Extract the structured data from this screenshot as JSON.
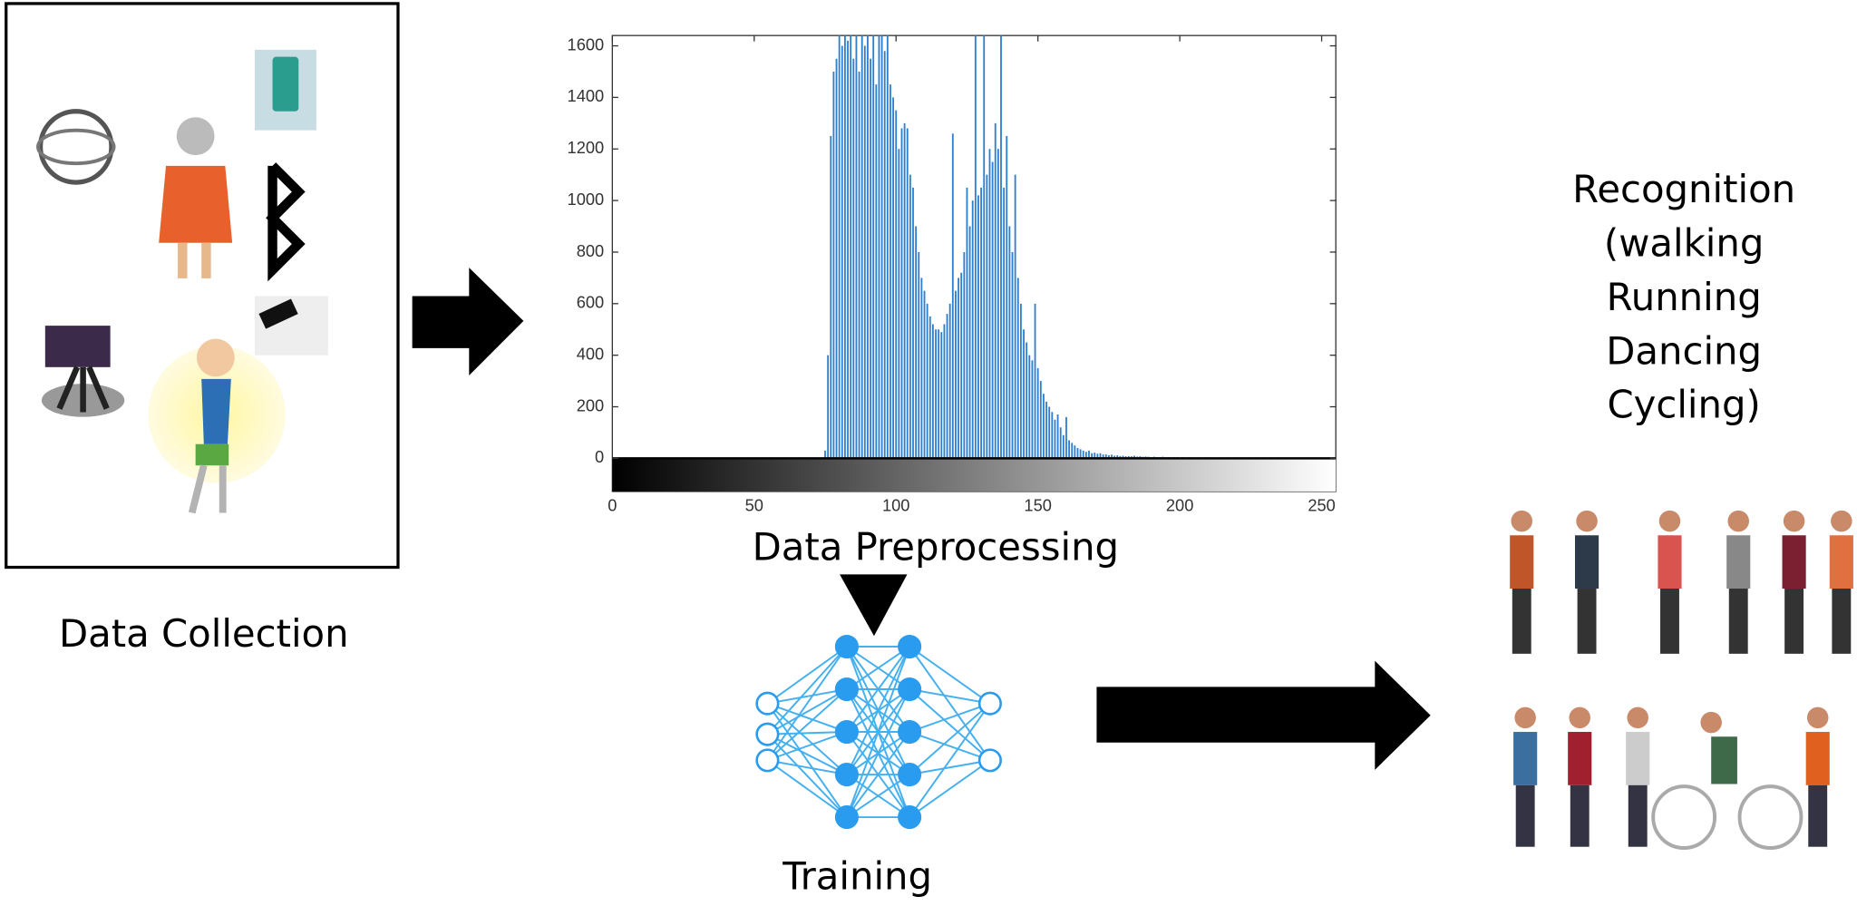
{
  "data_collection": {
    "label": "Data Collection"
  },
  "chart_data": {
    "type": "bar",
    "color": "#2f7fd0",
    "x": [
      75,
      76,
      77,
      78,
      79,
      80,
      81,
      82,
      83,
      84,
      85,
      86,
      87,
      88,
      89,
      90,
      91,
      92,
      93,
      94,
      95,
      96,
      97,
      98,
      99,
      100,
      101,
      102,
      103,
      104,
      105,
      106,
      107,
      108,
      109,
      110,
      111,
      112,
      113,
      114,
      115,
      116,
      117,
      118,
      119,
      120,
      121,
      122,
      123,
      124,
      125,
      126,
      127,
      128,
      129,
      130,
      131,
      132,
      133,
      134,
      135,
      136,
      137,
      138,
      139,
      140,
      141,
      142,
      143,
      144,
      145,
      146,
      147,
      148,
      149,
      150,
      151,
      152,
      153,
      154,
      155,
      156,
      157,
      158,
      159,
      160,
      161,
      162,
      163,
      164,
      165,
      166,
      167,
      168,
      169,
      170,
      171,
      172,
      173,
      174,
      175,
      176,
      177,
      178,
      179,
      180,
      181,
      182,
      183,
      184,
      185,
      186,
      187,
      188,
      189,
      190,
      191,
      192,
      193,
      194,
      195,
      196,
      197,
      198,
      199,
      200,
      201,
      202,
      203,
      204,
      205,
      206,
      207,
      208,
      209,
      210,
      211,
      212,
      213,
      214,
      215,
      216,
      217,
      218,
      219,
      220,
      221,
      222,
      223,
      224,
      225
    ],
    "values": [
      30,
      400,
      1250,
      1500,
      1550,
      1700,
      1600,
      1700,
      1620,
      1700,
      1550,
      1700,
      1500,
      1700,
      1600,
      1700,
      1550,
      1700,
      1450,
      1700,
      1700,
      1580,
      1700,
      1450,
      1400,
      1350,
      1200,
      1280,
      1300,
      1280,
      1100,
      1050,
      900,
      800,
      700,
      650,
      600,
      550,
      520,
      500,
      500,
      490,
      520,
      560,
      600,
      1260,
      650,
      700,
      720,
      800,
      1050,
      900,
      1000,
      1700,
      1020,
      1050,
      1700,
      1100,
      1200,
      1150,
      1300,
      1200,
      1700,
      1050,
      1250,
      900,
      800,
      1100,
      700,
      600,
      500,
      450,
      400,
      380,
      600,
      350,
      300,
      250,
      220,
      200,
      180,
      150,
      170,
      120,
      90,
      160,
      70,
      60,
      50,
      40,
      35,
      30,
      25,
      30,
      20,
      22,
      18,
      20,
      15,
      15,
      12,
      14,
      10,
      12,
      9,
      10,
      8,
      9,
      8,
      10,
      7,
      8,
      6,
      7,
      6,
      5,
      6,
      5,
      5,
      6,
      4,
      5,
      4,
      4,
      5,
      3,
      4,
      3,
      4,
      3,
      3,
      2,
      3,
      2,
      3,
      2,
      2,
      3,
      2,
      2,
      1,
      2,
      1,
      2,
      1,
      1,
      2,
      1,
      1,
      1,
      1
    ],
    "xlim": [
      0,
      255
    ],
    "ylim": [
      0,
      1640
    ],
    "xticks": [
      0,
      50,
      100,
      150,
      200,
      250
    ],
    "yticks": [
      0,
      200,
      400,
      600,
      800,
      1000,
      1200,
      1400,
      1600
    ]
  },
  "preprocessing": {
    "label": "Data Preprocessing"
  },
  "training": {
    "label": "Training"
  },
  "recognition": {
    "lines": [
      "Recognition",
      "(walking",
      "Running",
      "Dancing",
      "Cycling)"
    ]
  }
}
